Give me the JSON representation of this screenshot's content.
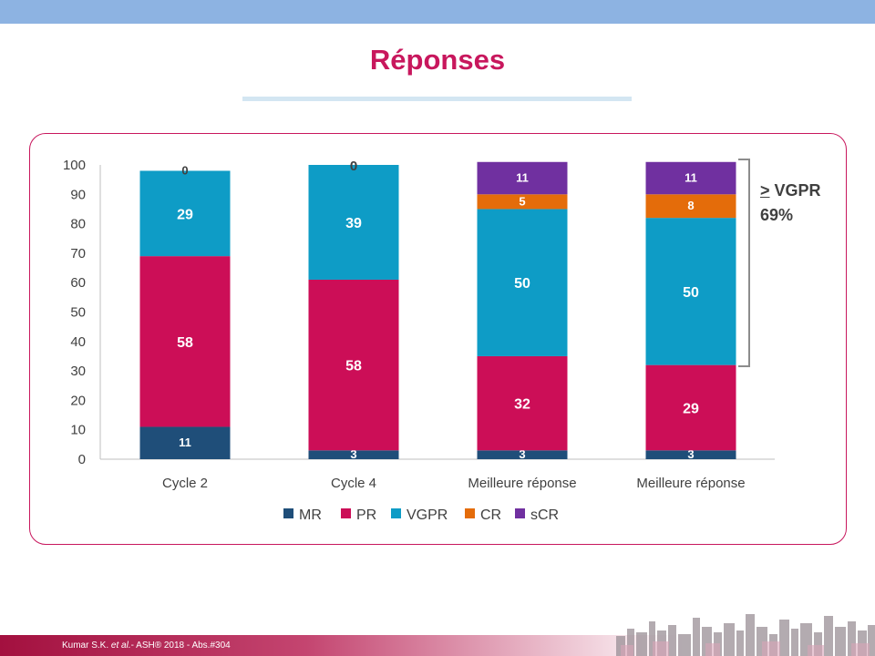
{
  "slide": {
    "title": "Réponses",
    "bracket_prefix": ">",
    "bracket_term": "VGPR",
    "bracket_value": "69%",
    "footer_author": "Kumar S.K.",
    "footer_etal": "et al.",
    "footer_rest": "- ASH® 2018 - Abs.#304"
  },
  "colors": {
    "MR": "#1f4e79",
    "PR": "#cc0e57",
    "VGPR": "#0e9cc6",
    "CR": "#e46c0a",
    "sCR": "#7030a0",
    "accent": "#c8175d"
  },
  "chart_data": {
    "type": "bar",
    "stacked": true,
    "categories": [
      "Cycle 2",
      "Cycle 4",
      "Meilleure réponse",
      "Meilleure réponse"
    ],
    "series": [
      {
        "name": "MR",
        "values": [
          11,
          3,
          3,
          3
        ]
      },
      {
        "name": "PR",
        "values": [
          58,
          58,
          32,
          29
        ]
      },
      {
        "name": "VGPR",
        "values": [
          29,
          39,
          50,
          50
        ]
      },
      {
        "name": "CR",
        "values": [
          0,
          0,
          5,
          8
        ]
      },
      {
        "name": "sCR",
        "values": [
          0,
          0,
          11,
          11
        ]
      }
    ],
    "ylim": [
      0,
      100
    ],
    "yticks": [
      0,
      10,
      20,
      30,
      40,
      50,
      60,
      70,
      80,
      90,
      100
    ],
    "grid": false,
    "legend_position": "bottom",
    "zero_labels": [
      "0",
      "0"
    ]
  }
}
